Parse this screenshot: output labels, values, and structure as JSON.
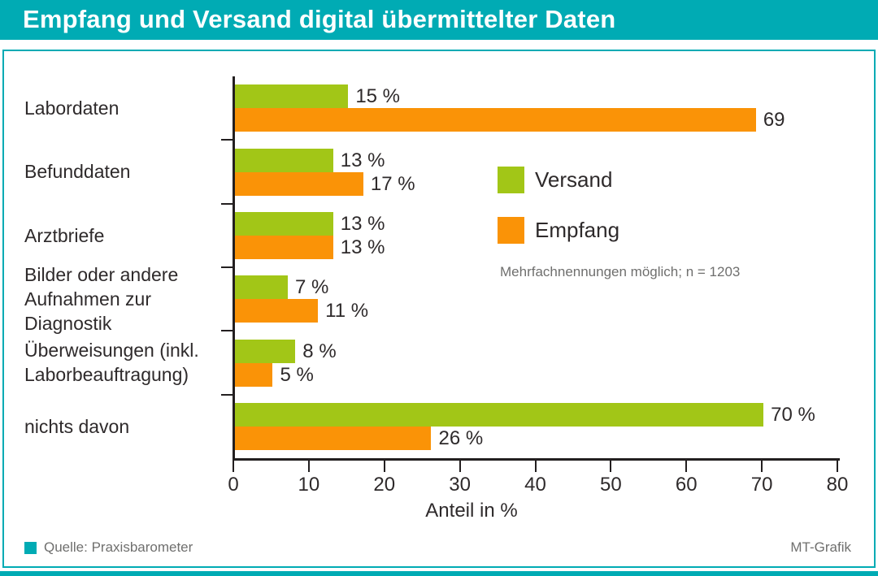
{
  "header": {
    "title": "Empfang und Versand digital übermittelter Daten"
  },
  "chart_data": {
    "type": "bar",
    "orientation": "horizontal",
    "categories": [
      "Labordaten",
      "Befunddaten",
      "Arztbriefe",
      "Bilder oder andere\nAufnahmen zur\nDiagnostik",
      "Überweisungen (inkl.\nLaborbeauftragung)",
      "nichts davon"
    ],
    "series": [
      {
        "name": "Versand",
        "color": "#A2C617",
        "values": [
          15,
          13,
          13,
          7,
          8,
          70
        ],
        "labels": [
          "15 %",
          "13 %",
          "13 %",
          "7 %",
          "8 %",
          "70 %"
        ]
      },
      {
        "name": "Empfang",
        "color": "#FA9307",
        "values": [
          69,
          17,
          13,
          11,
          5,
          26
        ],
        "labels": [
          "69",
          "17 %",
          "13 %",
          "11 %",
          "5 %",
          "26 %"
        ]
      }
    ],
    "xlabel": "Anteil in %",
    "xlim": [
      0,
      80
    ],
    "x_ticks": [
      0,
      10,
      20,
      30,
      40,
      50,
      60,
      70,
      80
    ],
    "grid": false,
    "legend_position": "right-middle",
    "note": "Mehrfachnennungen möglich; n = 1203"
  },
  "footer": {
    "source": "Quelle: Praxisbarometer",
    "credit": "MT-Grafik"
  },
  "colors": {
    "teal": "#00ABB4",
    "green": "#A2C617",
    "orange": "#FA9307",
    "axis": "#231F20",
    "text": "#2E2A2B",
    "muted": "#6F6F6E"
  }
}
